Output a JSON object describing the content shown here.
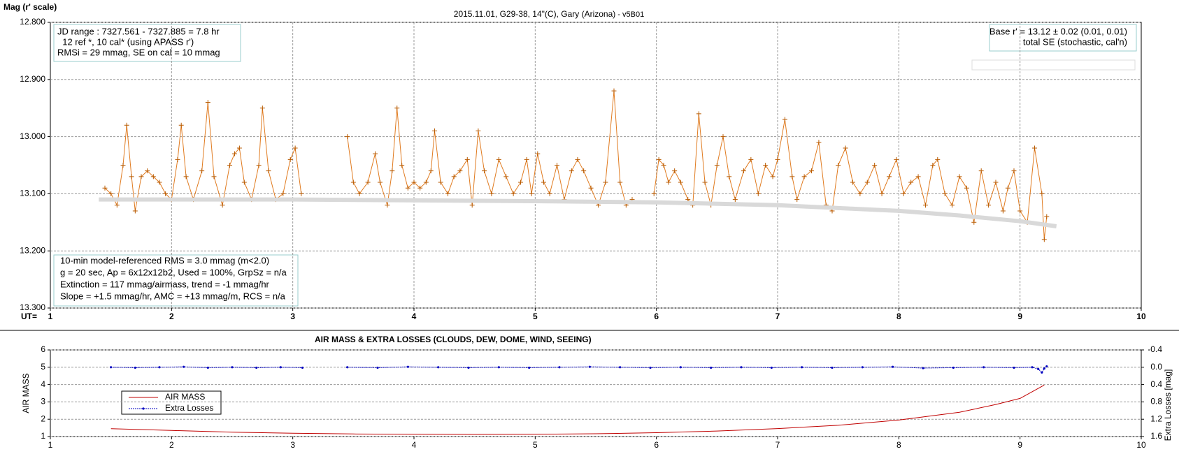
{
  "chart_data": [
    {
      "type": "line",
      "title": "2015.11.01, G29-38, 14\"(C), Gary (Arizona)",
      "subtitle": " - v5B01",
      "y_label": "Mag (r' scale)",
      "x_label": "UT=",
      "annotations": {
        "top_left": [
          "JD range : 7327.561 - 7327.885 = 7.8 hr",
          "  12 ref *, 10 cal* (using APASS r')",
          "RMSi = 29 mmag, SE on cal = 10 mmag"
        ],
        "top_right": [
          "Base r' = 13.12 ± 0.02 (0.01, 0.01)",
          "total SE (stochastic, cal'n)"
        ],
        "bottom_left": [
          "10-min model-referenced RMS = 3.0 mmag (m<2.0)",
          "g = 20 sec, Ap = 6x12x12b2, Used = 100%, GrpSz = n/a",
          "Extinction = 117 mmag/airmass, trend = -1 mmag/hr",
          "Slope = +1.5 mmag/hr, AMC = +13 mmag/m, RCS = n/a"
        ]
      },
      "xlim": [
        1,
        10
      ],
      "xticks": [
        1,
        2,
        3,
        4,
        5,
        6,
        7,
        8,
        9,
        10
      ],
      "ylim": [
        13.3,
        12.8
      ],
      "yticks": [
        {
          "value": 12.8,
          "label": "12.800"
        },
        {
          "value": 12.9,
          "label": "12.900"
        },
        {
          "value": 13.0,
          "label": "13.000"
        },
        {
          "value": 13.1,
          "label": "13.100"
        },
        {
          "value": 13.2,
          "label": "13.200"
        },
        {
          "value": 13.3,
          "label": "13.300"
        }
      ],
      "grid": "both",
      "series": [
        {
          "color": "#e07b20",
          "marker": "plus",
          "x": [
            1.45,
            1.5,
            1.55,
            1.6,
            1.63,
            1.67,
            1.7,
            1.75,
            1.8,
            1.85,
            1.9,
            1.95,
            2.0,
            2.05,
            2.08,
            2.12,
            2.18,
            2.25,
            2.3,
            2.35,
            2.42,
            2.48,
            2.52,
            2.56,
            2.6,
            2.66,
            2.72,
            2.75,
            2.8,
            2.86,
            2.92,
            2.98,
            3.02,
            3.07,
            3.25,
            3.45,
            3.5,
            3.55,
            3.62,
            3.68,
            3.72,
            3.78,
            3.82,
            3.86,
            3.9,
            3.95,
            4.0,
            4.05,
            4.1,
            4.14,
            4.17,
            4.22,
            4.28,
            4.33,
            4.38,
            4.44,
            4.48,
            4.53,
            4.58,
            4.64,
            4.7,
            4.76,
            4.82,
            4.88,
            4.93,
            4.97,
            5.02,
            5.07,
            5.12,
            5.18,
            5.24,
            5.3,
            5.35,
            5.4,
            5.46,
            5.52,
            5.58,
            5.65,
            5.7,
            5.75,
            5.8,
            5.9,
            5.98,
            6.02,
            6.06,
            6.1,
            6.15,
            6.2,
            6.26,
            6.3,
            6.35,
            6.4,
            6.45,
            6.5,
            6.55,
            6.6,
            6.65,
            6.72,
            6.78,
            6.84,
            6.9,
            6.96,
            7.0,
            7.06,
            7.12,
            7.16,
            7.22,
            7.28,
            7.34,
            7.4,
            7.45,
            7.5,
            7.56,
            7.62,
            7.68,
            7.74,
            7.8,
            7.86,
            7.92,
            7.98,
            8.04,
            8.1,
            8.16,
            8.22,
            8.28,
            8.32,
            8.38,
            8.44,
            8.5,
            8.56,
            8.62,
            8.68,
            8.74,
            8.8,
            8.86,
            8.9,
            8.95,
            9.0,
            9.06,
            9.12,
            9.18,
            9.2,
            9.22
          ],
          "values": [
            13.09,
            13.1,
            13.12,
            13.05,
            12.98,
            13.07,
            13.13,
            13.07,
            13.06,
            13.07,
            13.08,
            13.1,
            13.11,
            13.04,
            12.98,
            13.07,
            13.11,
            13.06,
            12.94,
            13.07,
            13.12,
            13.05,
            13.03,
            13.02,
            13.08,
            13.11,
            13.05,
            12.95,
            13.06,
            13.11,
            13.1,
            13.04,
            13.02,
            13.1,
            null,
            13.0,
            13.08,
            13.1,
            13.08,
            13.03,
            13.08,
            13.12,
            13.06,
            12.95,
            13.05,
            13.09,
            13.08,
            13.09,
            13.08,
            13.06,
            12.99,
            13.08,
            13.1,
            13.07,
            13.06,
            13.04,
            13.12,
            12.99,
            13.06,
            13.1,
            13.04,
            13.07,
            13.1,
            13.08,
            13.04,
            13.1,
            13.03,
            13.08,
            13.1,
            13.05,
            13.11,
            13.06,
            13.04,
            13.06,
            13.09,
            13.12,
            13.08,
            12.92,
            13.08,
            13.12,
            13.11,
            null,
            13.1,
            13.04,
            13.05,
            13.08,
            13.06,
            13.08,
            13.11,
            13.12,
            12.96,
            13.08,
            13.12,
            13.05,
            13.0,
            13.07,
            13.11,
            13.06,
            13.04,
            13.1,
            13.05,
            13.07,
            13.04,
            12.97,
            13.07,
            13.11,
            13.07,
            13.06,
            13.01,
            13.12,
            13.13,
            13.05,
            13.02,
            13.08,
            13.1,
            13.08,
            13.05,
            13.1,
            13.07,
            13.04,
            13.1,
            13.08,
            13.07,
            13.12,
            13.05,
            13.04,
            13.1,
            13.12,
            13.07,
            13.09,
            13.15,
            13.06,
            13.12,
            13.08,
            13.13,
            13.09,
            13.06,
            13.13,
            13.15,
            13.02,
            13.1,
            13.18,
            13.14
          ]
        },
        {
          "color": "#d9d9d9",
          "width": 6,
          "x": [
            1.4,
            3,
            5,
            6,
            7,
            8,
            8.5,
            9,
            9.3
          ],
          "values": [
            13.11,
            13.11,
            13.113,
            13.115,
            13.12,
            13.13,
            13.138,
            13.148,
            13.157
          ]
        }
      ]
    },
    {
      "type": "line",
      "title": "AIR MASS & EXTRA LOSSES (CLOUDS, DEW, DOME, WIND, SEEING)",
      "y_label": "AIR MASS",
      "y2_label": "Extra Losses [mag]",
      "xlim": [
        1,
        10
      ],
      "xticks": [
        1,
        2,
        3,
        4,
        5,
        6,
        7,
        8,
        9,
        10
      ],
      "ylim": [
        1,
        6
      ],
      "yticks": [
        1,
        2,
        3,
        4,
        5,
        6
      ],
      "y2lim": [
        1.6,
        -0.4
      ],
      "y2ticks": [
        -0.4,
        {
          "value": 0.0,
          "label": "0.0"
        },
        0.4,
        0.8,
        1.2,
        1.6
      ],
      "grid": "y",
      "legend": "lower left",
      "series": [
        {
          "name": "AIR MASS",
          "color": "#c00000",
          "x": [
            1.5,
            2,
            2.5,
            3,
            3.5,
            4,
            4.5,
            5,
            5.5,
            6,
            6.5,
            7,
            7.5,
            8,
            8.5,
            8.8,
            9,
            9.2
          ],
          "values": [
            1.45,
            1.35,
            1.25,
            1.19,
            1.15,
            1.13,
            1.12,
            1.13,
            1.16,
            1.22,
            1.32,
            1.46,
            1.65,
            1.95,
            2.4,
            2.85,
            3.2,
            3.97
          ]
        },
        {
          "name": "Extra Losses",
          "color": "#0000c0",
          "axis": "y2",
          "marker": "dot",
          "x": [
            1.5,
            1.7,
            1.9,
            2.1,
            2.3,
            2.5,
            2.7,
            2.9,
            3.08,
            3.25,
            3.45,
            3.7,
            3.95,
            4.2,
            4.45,
            4.7,
            4.95,
            5.2,
            5.45,
            5.7,
            5.95,
            6.2,
            6.45,
            6.7,
            6.95,
            7.2,
            7.45,
            7.7,
            7.95,
            8.2,
            8.45,
            8.7,
            8.95,
            9.1,
            9.15,
            9.18,
            9.2,
            9.22
          ],
          "values": [
            0.0,
            0.01,
            0.0,
            -0.01,
            0.01,
            0.0,
            0.01,
            0.0,
            0.01,
            null,
            0.0,
            0.01,
            -0.01,
            0.0,
            0.01,
            0.0,
            0.01,
            0.0,
            -0.01,
            0.0,
            0.01,
            0.0,
            0.01,
            0.0,
            0.01,
            0.0,
            0.01,
            0.0,
            -0.01,
            0.02,
            0.01,
            0.0,
            0.01,
            0.0,
            0.04,
            0.12,
            0.03,
            -0.02
          ]
        }
      ]
    }
  ]
}
